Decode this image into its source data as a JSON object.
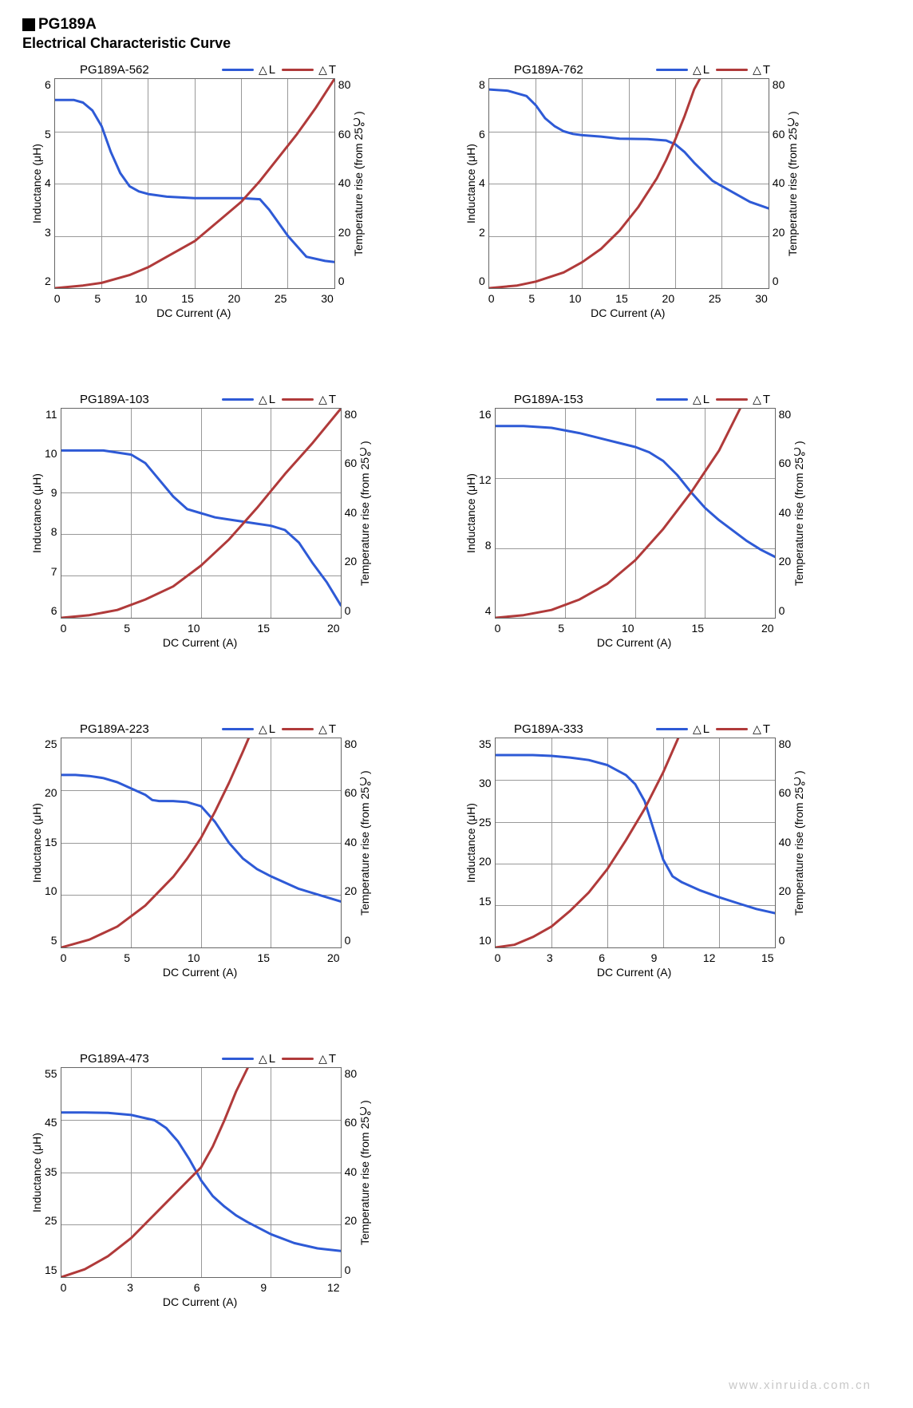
{
  "product": "PG189A",
  "subtitle": "Electrical Characteristic Curve",
  "footer": "www.xinruida.com.cn",
  "legend": {
    "L": {
      "label": "L",
      "color": "#2e5ad6"
    },
    "T": {
      "label": "T",
      "color": "#b03a3a"
    }
  },
  "axis_common": {
    "xlabel": "DC Current (A)",
    "ylabel_left": "Inductance (μH)",
    "ylabel_right": "Temperature rise (from 25℃)",
    "y2_min": 0,
    "y2_max": 80,
    "y2_ticks": [
      80,
      60,
      40,
      20,
      0
    ],
    "line_width": 3,
    "grid_color": "#999999",
    "background": "#ffffff",
    "font_size_ticks": 14,
    "font_size_labels": 14,
    "font_size_title": 15
  },
  "charts": [
    {
      "title": "PG189A-562",
      "x_min": 0,
      "x_max": 30,
      "x_step": 5,
      "y1_min": 2,
      "y1_max": 6,
      "y1_step": 1,
      "L": [
        [
          0,
          5.6
        ],
        [
          2,
          5.6
        ],
        [
          3,
          5.55
        ],
        [
          4,
          5.4
        ],
        [
          5,
          5.1
        ],
        [
          6,
          4.6
        ],
        [
          7,
          4.2
        ],
        [
          8,
          3.95
        ],
        [
          9,
          3.85
        ],
        [
          10,
          3.8
        ],
        [
          12,
          3.75
        ],
        [
          15,
          3.72
        ],
        [
          18,
          3.72
        ],
        [
          20,
          3.72
        ],
        [
          22,
          3.7
        ],
        [
          23,
          3.5
        ],
        [
          25,
          3.0
        ],
        [
          27,
          2.6
        ],
        [
          29,
          2.52
        ],
        [
          30,
          2.5
        ]
      ],
      "T": [
        [
          0,
          0
        ],
        [
          3,
          1
        ],
        [
          5,
          2
        ],
        [
          8,
          5
        ],
        [
          10,
          8
        ],
        [
          12,
          12
        ],
        [
          15,
          18
        ],
        [
          18,
          27
        ],
        [
          20,
          33
        ],
        [
          22,
          41
        ],
        [
          24,
          50
        ],
        [
          26,
          59
        ],
        [
          28,
          69
        ],
        [
          30,
          80
        ]
      ]
    },
    {
      "title": "PG189A-762",
      "x_min": 0,
      "x_max": 30,
      "x_step": 5,
      "y1_min": 0,
      "y1_max": 8,
      "y1_step": 2,
      "L": [
        [
          0,
          7.6
        ],
        [
          2,
          7.55
        ],
        [
          4,
          7.35
        ],
        [
          5,
          7.0
        ],
        [
          6,
          6.5
        ],
        [
          7,
          6.2
        ],
        [
          8,
          6.0
        ],
        [
          9,
          5.9
        ],
        [
          10,
          5.85
        ],
        [
          12,
          5.8
        ],
        [
          14,
          5.72
        ],
        [
          17,
          5.7
        ],
        [
          19,
          5.65
        ],
        [
          20,
          5.5
        ],
        [
          21,
          5.2
        ],
        [
          22,
          4.8
        ],
        [
          24,
          4.1
        ],
        [
          26,
          3.7
        ],
        [
          28,
          3.3
        ],
        [
          30,
          3.05
        ]
      ],
      "T": [
        [
          0,
          0
        ],
        [
          3,
          1
        ],
        [
          5,
          2.5
        ],
        [
          8,
          6
        ],
        [
          10,
          10
        ],
        [
          12,
          15
        ],
        [
          14,
          22
        ],
        [
          16,
          31
        ],
        [
          18,
          42
        ],
        [
          19,
          49
        ],
        [
          20,
          57
        ],
        [
          21,
          66
        ],
        [
          22,
          76
        ],
        [
          22.6,
          80
        ]
      ]
    },
    {
      "title": "PG189A-103",
      "x_min": 0,
      "x_max": 20,
      "x_step": 5,
      "y1_min": 6,
      "y1_max": 11,
      "y1_step": 1,
      "L": [
        [
          0,
          10.0
        ],
        [
          2,
          10.0
        ],
        [
          3,
          10.0
        ],
        [
          4,
          9.95
        ],
        [
          5,
          9.9
        ],
        [
          6,
          9.7
        ],
        [
          7,
          9.3
        ],
        [
          8,
          8.9
        ],
        [
          9,
          8.6
        ],
        [
          10,
          8.5
        ],
        [
          11,
          8.4
        ],
        [
          12,
          8.35
        ],
        [
          13,
          8.3
        ],
        [
          14,
          8.25
        ],
        [
          15,
          8.2
        ],
        [
          16,
          8.1
        ],
        [
          17,
          7.8
        ],
        [
          18,
          7.3
        ],
        [
          19,
          6.85
        ],
        [
          20,
          6.3
        ]
      ],
      "T": [
        [
          0,
          0
        ],
        [
          2,
          1
        ],
        [
          4,
          3
        ],
        [
          6,
          7
        ],
        [
          8,
          12
        ],
        [
          10,
          20
        ],
        [
          12,
          30
        ],
        [
          14,
          42
        ],
        [
          16,
          55
        ],
        [
          18,
          67
        ],
        [
          20,
          80
        ]
      ]
    },
    {
      "title": "PG189A-153",
      "x_min": 0,
      "x_max": 20,
      "x_step": 5,
      "y1_min": 4,
      "y1_max": 16,
      "y1_step": 4,
      "L": [
        [
          0,
          15.0
        ],
        [
          2,
          15.0
        ],
        [
          4,
          14.9
        ],
        [
          6,
          14.6
        ],
        [
          8,
          14.2
        ],
        [
          10,
          13.8
        ],
        [
          11,
          13.5
        ],
        [
          12,
          13.0
        ],
        [
          13,
          12.2
        ],
        [
          14,
          11.2
        ],
        [
          15,
          10.3
        ],
        [
          16,
          9.6
        ],
        [
          17,
          9.0
        ],
        [
          18,
          8.4
        ],
        [
          19,
          7.9
        ],
        [
          20,
          7.5
        ]
      ],
      "T": [
        [
          0,
          0
        ],
        [
          2,
          1
        ],
        [
          4,
          3
        ],
        [
          6,
          7
        ],
        [
          8,
          13
        ],
        [
          10,
          22
        ],
        [
          12,
          34
        ],
        [
          14,
          48
        ],
        [
          16,
          64
        ],
        [
          17.5,
          80
        ]
      ]
    },
    {
      "title": "PG189A-223",
      "x_min": 0,
      "x_max": 20,
      "x_step": 5,
      "y1_min": 5,
      "y1_max": 25,
      "y1_step": 5,
      "L": [
        [
          0,
          21.5
        ],
        [
          1,
          21.5
        ],
        [
          2,
          21.4
        ],
        [
          3,
          21.2
        ],
        [
          4,
          20.8
        ],
        [
          5,
          20.2
        ],
        [
          6,
          19.6
        ],
        [
          6.5,
          19.1
        ],
        [
          7,
          19.0
        ],
        [
          8,
          19.0
        ],
        [
          9,
          18.9
        ],
        [
          10,
          18.5
        ],
        [
          11,
          17.0
        ],
        [
          12,
          15.0
        ],
        [
          13,
          13.5
        ],
        [
          14,
          12.5
        ],
        [
          15,
          11.8
        ],
        [
          17,
          10.6
        ],
        [
          20,
          9.4
        ]
      ],
      "T": [
        [
          0,
          0
        ],
        [
          2,
          3
        ],
        [
          4,
          8
        ],
        [
          6,
          16
        ],
        [
          8,
          27
        ],
        [
          9,
          34
        ],
        [
          10,
          42
        ],
        [
          11,
          52
        ],
        [
          12,
          63
        ],
        [
          13,
          75
        ],
        [
          13.4,
          80
        ]
      ]
    },
    {
      "title": "PG189A-333",
      "x_min": 0,
      "x_max": 15,
      "x_step": 3,
      "y1_min": 10,
      "y1_max": 35,
      "y1_step": 5,
      "L": [
        [
          0,
          33.0
        ],
        [
          1,
          33.0
        ],
        [
          2,
          33.0
        ],
        [
          3,
          32.9
        ],
        [
          4,
          32.7
        ],
        [
          5,
          32.4
        ],
        [
          6,
          31.8
        ],
        [
          7,
          30.6
        ],
        [
          7.5,
          29.5
        ],
        [
          8,
          27.5
        ],
        [
          8.5,
          24.0
        ],
        [
          9,
          20.5
        ],
        [
          9.5,
          18.5
        ],
        [
          10,
          17.8
        ],
        [
          11,
          16.8
        ],
        [
          12,
          16.0
        ],
        [
          13,
          15.3
        ],
        [
          14,
          14.6
        ],
        [
          15,
          14.1
        ]
      ],
      "T": [
        [
          0,
          0
        ],
        [
          1,
          1
        ],
        [
          2,
          4
        ],
        [
          3,
          8
        ],
        [
          4,
          14
        ],
        [
          5,
          21
        ],
        [
          6,
          30
        ],
        [
          7,
          41
        ],
        [
          8,
          53
        ],
        [
          9,
          67
        ],
        [
          9.8,
          80
        ]
      ]
    },
    {
      "title": "PG189A-473",
      "x_min": 0,
      "x_max": 12,
      "x_step": 3,
      "y1_min": 15,
      "y1_max": 55,
      "y1_step": 10,
      "L": [
        [
          0,
          46.5
        ],
        [
          1,
          46.5
        ],
        [
          2,
          46.4
        ],
        [
          3,
          46.0
        ],
        [
          4,
          45.0
        ],
        [
          4.5,
          43.5
        ],
        [
          5,
          41.0
        ],
        [
          5.5,
          37.5
        ],
        [
          6,
          33.5
        ],
        [
          6.5,
          30.5
        ],
        [
          7,
          28.5
        ],
        [
          7.5,
          26.8
        ],
        [
          8,
          25.5
        ],
        [
          9,
          23.2
        ],
        [
          10,
          21.5
        ],
        [
          11,
          20.5
        ],
        [
          12,
          20.0
        ]
      ],
      "T": [
        [
          0,
          0
        ],
        [
          1,
          3
        ],
        [
          2,
          8
        ],
        [
          3,
          15
        ],
        [
          4,
          24
        ],
        [
          5,
          33
        ],
        [
          6,
          42
        ],
        [
          6.5,
          50
        ],
        [
          7,
          60
        ],
        [
          7.5,
          71
        ],
        [
          8,
          80
        ]
      ]
    }
  ]
}
